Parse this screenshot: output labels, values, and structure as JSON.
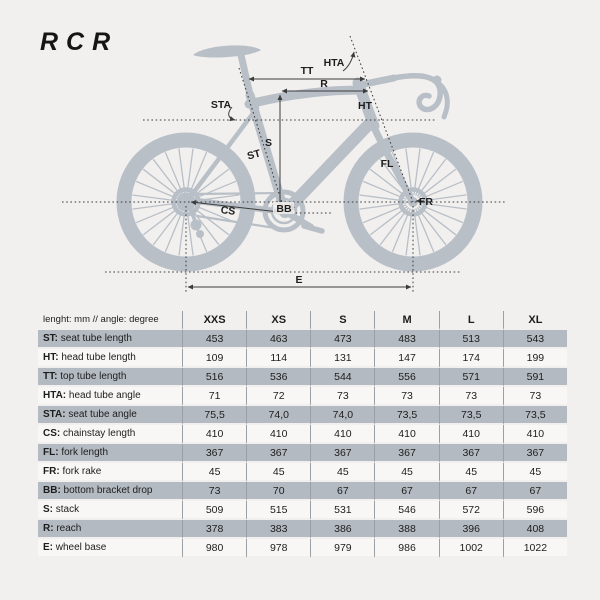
{
  "logo": "RCR",
  "colors": {
    "background": "#f1f0ee",
    "row_shaded": "#b4bac1",
    "row_light": "#f8f7f6",
    "bike": "#b9bfc7",
    "anno": "#3c3c3c",
    "text": "#1d1d1d",
    "divider": "#9aa0a6"
  },
  "diagram": {
    "labels": {
      "hta": "HTA",
      "tt": "TT",
      "r": "R",
      "sta": "STA",
      "ht": "HT",
      "s": "S",
      "st": "ST",
      "fl": "FL",
      "cs": "CS",
      "bb": "BB",
      "fr": "FR",
      "e": "E"
    }
  },
  "table": {
    "unit_header": "lenght: mm // angle: degree",
    "sizes": [
      "XXS",
      "XS",
      "S",
      "M",
      "L",
      "XL"
    ],
    "rows": [
      {
        "code": "ST",
        "label": "seat tube length",
        "values": [
          "453",
          "463",
          "473",
          "483",
          "513",
          "543"
        ]
      },
      {
        "code": "HT",
        "label": "head tube length",
        "values": [
          "109",
          "114",
          "131",
          "147",
          "174",
          "199"
        ]
      },
      {
        "code": "TT",
        "label": "top tube length",
        "values": [
          "516",
          "536",
          "544",
          "556",
          "571",
          "591"
        ]
      },
      {
        "code": "HTA",
        "label": "head tube angle",
        "values": [
          "71",
          "72",
          "73",
          "73",
          "73",
          "73"
        ]
      },
      {
        "code": "STA",
        "label": "seat tube angle",
        "values": [
          "75,5",
          "74,0",
          "74,0",
          "73,5",
          "73,5",
          "73,5"
        ]
      },
      {
        "code": "CS",
        "label": "chainstay length",
        "values": [
          "410",
          "410",
          "410",
          "410",
          "410",
          "410"
        ]
      },
      {
        "code": "FL",
        "label": "fork length",
        "values": [
          "367",
          "367",
          "367",
          "367",
          "367",
          "367"
        ]
      },
      {
        "code": "FR",
        "label": "fork rake",
        "values": [
          "45",
          "45",
          "45",
          "45",
          "45",
          "45"
        ]
      },
      {
        "code": "BB",
        "label": "bottom bracket drop",
        "values": [
          "73",
          "70",
          "67",
          "67",
          "67",
          "67"
        ]
      },
      {
        "code": "S",
        "label": "stack",
        "values": [
          "509",
          "515",
          "531",
          "546",
          "572",
          "596"
        ]
      },
      {
        "code": "R",
        "label": "reach",
        "values": [
          "378",
          "383",
          "386",
          "388",
          "396",
          "408"
        ]
      },
      {
        "code": "E",
        "label": "wheel base",
        "values": [
          "980",
          "978",
          "979",
          "986",
          "1002",
          "1022"
        ]
      }
    ]
  }
}
